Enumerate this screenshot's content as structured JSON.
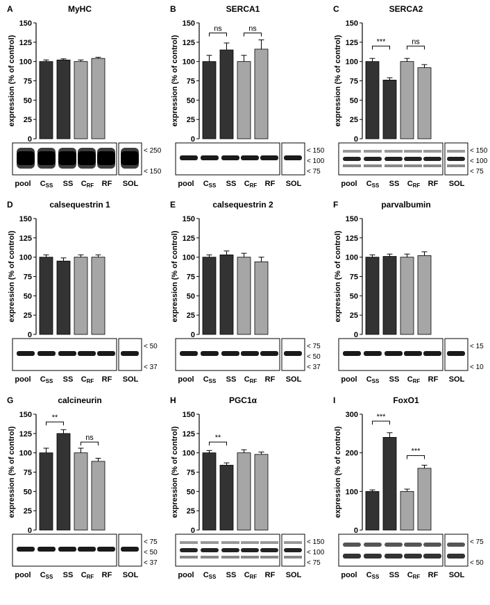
{
  "figure": {
    "ylabel": "expression (% of control)",
    "categories": [
      "C",
      "SS",
      "C",
      "RF"
    ],
    "category_subscripts": [
      "SS",
      "",
      "RF",
      ""
    ],
    "blot_lane_labels": [
      "pool",
      "C",
      "SS",
      "C",
      "RF"
    ],
    "blot_lane_subscripts": [
      "",
      "SS",
      "",
      "RF",
      ""
    ],
    "sol_label": "SOL",
    "colors": {
      "dark_bar": "#333333",
      "light_bar": "#a6a6a6",
      "axis": "#000000"
    }
  },
  "chart_data": [
    {
      "panel": "A",
      "title": "MyHC",
      "type": "bar",
      "categories": [
        "CSS",
        "SS",
        "CRF",
        "RF"
      ],
      "values": [
        100,
        102,
        100,
        104
      ],
      "errors": [
        2,
        1.5,
        2,
        1.5
      ],
      "ylim": [
        0,
        150
      ],
      "yticks": [
        "0",
        "25",
        "50",
        "75",
        "100",
        "125",
        "150"
      ],
      "ylabel": "expression (% of control)",
      "brackets": [],
      "blot_markers": [
        "< 250",
        "< 150"
      ],
      "blot_style": "heavy"
    },
    {
      "panel": "B",
      "title": "SERCA1",
      "type": "bar",
      "categories": [
        "CSS",
        "SS",
        "CRF",
        "RF"
      ],
      "values": [
        100,
        115,
        100,
        116
      ],
      "errors": [
        8,
        9,
        8,
        12
      ],
      "ylim": [
        0,
        150
      ],
      "yticks": [
        "0",
        "25",
        "50",
        "75",
        "100",
        "125",
        "150"
      ],
      "ylabel": "expression (% of control)",
      "brackets": [
        {
          "from": 0,
          "to": 1,
          "label": "ns",
          "y": 137
        },
        {
          "from": 2,
          "to": 3,
          "label": "ns",
          "y": 137
        }
      ],
      "blot_markers": [
        "< 150",
        "< 100",
        "< 75"
      ],
      "blot_style": "single"
    },
    {
      "panel": "C",
      "title": "SERCA2",
      "type": "bar",
      "categories": [
        "CSS",
        "SS",
        "CRF",
        "RF"
      ],
      "values": [
        100,
        76,
        100,
        92
      ],
      "errors": [
        4,
        3,
        4,
        4
      ],
      "ylim": [
        0,
        150
      ],
      "yticks": [
        "0",
        "25",
        "50",
        "75",
        "100",
        "125",
        "150"
      ],
      "ylabel": "expression (% of control)",
      "brackets": [
        {
          "from": 0,
          "to": 1,
          "label": "***",
          "y": 120
        },
        {
          "from": 2,
          "to": 3,
          "label": "ns",
          "y": 120
        }
      ],
      "blot_markers": [
        "< 150",
        "< 100",
        "< 75"
      ],
      "blot_style": "multi"
    },
    {
      "panel": "D",
      "title": "calsequestrin 1",
      "type": "bar",
      "categories": [
        "CSS",
        "SS",
        "CRF",
        "RF"
      ],
      "values": [
        100,
        95,
        100,
        100
      ],
      "errors": [
        3,
        4,
        3,
        3
      ],
      "ylim": [
        0,
        150
      ],
      "yticks": [
        "0",
        "25",
        "50",
        "75",
        "100",
        "125",
        "150"
      ],
      "ylabel": "expression (% of control)",
      "brackets": [],
      "blot_markers": [
        "< 50",
        "< 37"
      ],
      "blot_style": "single"
    },
    {
      "panel": "E",
      "title": "calsequestrin 2",
      "type": "bar",
      "categories": [
        "CSS",
        "SS",
        "CRF",
        "RF"
      ],
      "values": [
        100,
        103,
        100,
        94
      ],
      "errors": [
        3,
        5,
        5,
        6
      ],
      "ylim": [
        0,
        150
      ],
      "yticks": [
        "0",
        "25",
        "50",
        "75",
        "100",
        "125",
        "150"
      ],
      "ylabel": "expression (% of control)",
      "brackets": [],
      "blot_markers": [
        "< 75",
        "< 50",
        "< 37"
      ],
      "blot_style": "single"
    },
    {
      "panel": "F",
      "title": "parvalbumin",
      "type": "bar",
      "categories": [
        "CSS",
        "SS",
        "CRF",
        "RF"
      ],
      "values": [
        100,
        101,
        100,
        102
      ],
      "errors": [
        3,
        3,
        4,
        5
      ],
      "ylim": [
        0,
        150
      ],
      "yticks": [
        "0",
        "25",
        "50",
        "75",
        "100",
        "125",
        "150"
      ],
      "ylabel": "expression (% of control)",
      "brackets": [],
      "blot_markers": [
        "< 15",
        "< 10"
      ],
      "blot_style": "single"
    },
    {
      "panel": "G",
      "title": "calcineurin",
      "type": "bar",
      "categories": [
        "CSS",
        "SS",
        "CRF",
        "RF"
      ],
      "values": [
        100,
        125,
        100,
        89
      ],
      "errors": [
        6,
        5,
        6,
        4
      ],
      "ylim": [
        0,
        150
      ],
      "yticks": [
        "0",
        "25",
        "50",
        "75",
        "100",
        "125",
        "150"
      ],
      "ylabel": "expression (% of control)",
      "brackets": [
        {
          "from": 0,
          "to": 1,
          "label": "**",
          "y": 140
        },
        {
          "from": 2,
          "to": 3,
          "label": "ns",
          "y": 114
        }
      ],
      "blot_markers": [
        "< 75",
        "< 50",
        "< 37"
      ],
      "blot_style": "single"
    },
    {
      "panel": "H",
      "title": "PGC1α",
      "type": "bar",
      "categories": [
        "CSS",
        "SS",
        "CRF",
        "RF"
      ],
      "values": [
        100,
        84,
        100,
        98
      ],
      "errors": [
        3,
        3,
        4,
        3
      ],
      "ylim": [
        0,
        150
      ],
      "yticks": [
        "0",
        "25",
        "50",
        "75",
        "100",
        "125",
        "150"
      ],
      "ylabel": "expression (% of control)",
      "brackets": [
        {
          "from": 0,
          "to": 1,
          "label": "**",
          "y": 114
        }
      ],
      "blot_markers": [
        "< 150",
        "< 100",
        "< 75"
      ],
      "blot_style": "multi"
    },
    {
      "panel": "I",
      "title": "FoxO1",
      "type": "bar",
      "categories": [
        "CSS",
        "SS",
        "CRF",
        "RF"
      ],
      "values": [
        100,
        240,
        100,
        160
      ],
      "errors": [
        4,
        12,
        6,
        8
      ],
      "ylim": [
        0,
        300
      ],
      "yticks": [
        "0",
        "100",
        "200",
        "300"
      ],
      "ylabel": "expression (% of control)",
      "brackets": [
        {
          "from": 0,
          "to": 1,
          "label": "***",
          "y": 282
        },
        {
          "from": 2,
          "to": 3,
          "label": "***",
          "y": 193
        }
      ],
      "blot_markers": [
        "< 75",
        "< 50"
      ],
      "blot_style": "double"
    }
  ]
}
